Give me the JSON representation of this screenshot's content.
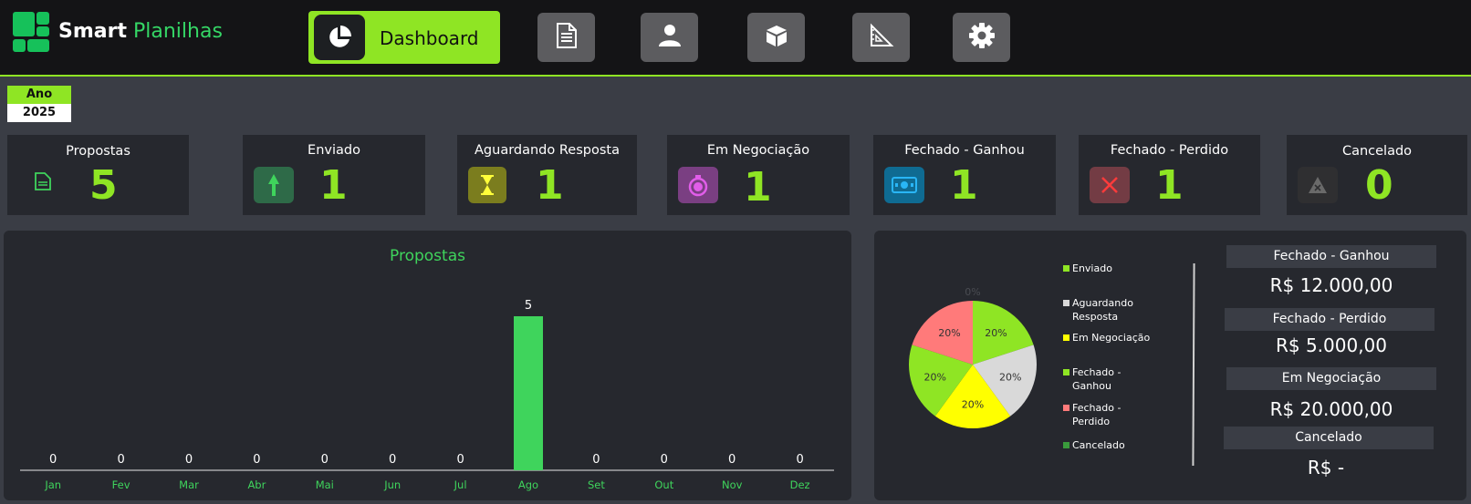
{
  "app": {
    "brand_part1": "Smart",
    "brand_part2": "Planilhas"
  },
  "nav": {
    "active_label": "Dashboard",
    "items": [
      {
        "icon": "document-icon"
      },
      {
        "icon": "user-icon"
      },
      {
        "icon": "box-icon"
      },
      {
        "icon": "ruler-icon"
      },
      {
        "icon": "gear-icon"
      }
    ]
  },
  "filter": {
    "year_label": "Ano",
    "year_value": "2025"
  },
  "kpis": [
    {
      "label": "Propostas",
      "value": "5",
      "icon": "file-icon",
      "color": "#2f3a34"
    },
    {
      "label": "Enviado",
      "value": "1",
      "icon": "arrow-up-icon",
      "color": "#2e6a48"
    },
    {
      "label": "Aguardando Resposta",
      "value": "1",
      "icon": "hourglass-icon",
      "color": "#7b7d1e"
    },
    {
      "label": "Em Negociação",
      "value": "1",
      "icon": "stopwatch-icon",
      "color": "#7a3f82"
    },
    {
      "label": "Fechado - Ganhou",
      "value": "1",
      "icon": "money-icon",
      "color": "#0f6b92"
    },
    {
      "label": "Fechado - Perdido",
      "value": "1",
      "icon": "x-icon",
      "color": "#733c44"
    },
    {
      "label": "Cancelado",
      "value": "0",
      "icon": "cancel-triangle-icon",
      "color": "#2f2f31"
    }
  ],
  "chart_data": [
    {
      "type": "bar",
      "title": "Propostas",
      "categories": [
        "Jan",
        "Fev",
        "Mar",
        "Abr",
        "Mai",
        "Jun",
        "Jul",
        "Ago",
        "Set",
        "Out",
        "Nov",
        "Dez"
      ],
      "values": [
        0,
        0,
        0,
        0,
        0,
        0,
        0,
        5,
        0,
        0,
        0,
        0
      ],
      "ylim": [
        0,
        5
      ],
      "colors": {
        "bar": "#3fd45c",
        "labels": "#3fd45c"
      }
    },
    {
      "type": "pie",
      "categories": [
        "Enviado",
        "Aguardando Resposta",
        "Em Negociação",
        "Fechado - Ganhou",
        "Fechado - Perdido",
        "Cancelado"
      ],
      "values": [
        20,
        20,
        20,
        20,
        20,
        0
      ],
      "labels": [
        "20%",
        "20%",
        "20%",
        "20%",
        "20%",
        "0%"
      ],
      "colors": [
        "#8fe524",
        "#d9d9d9",
        "#ffff00",
        "#8fe524",
        "#ff7a7a",
        "#3a9b3c"
      ],
      "legend": "right"
    }
  ],
  "summary": [
    {
      "label": "Fechado - Ganhou",
      "value": "R$ 12.000,00"
    },
    {
      "label": "Fechado - Perdido",
      "value": "R$ 5.000,00"
    },
    {
      "label": "Em Negociação",
      "value": "R$ 20.000,00"
    },
    {
      "label": "Cancelado",
      "value": "R$ -"
    }
  ]
}
